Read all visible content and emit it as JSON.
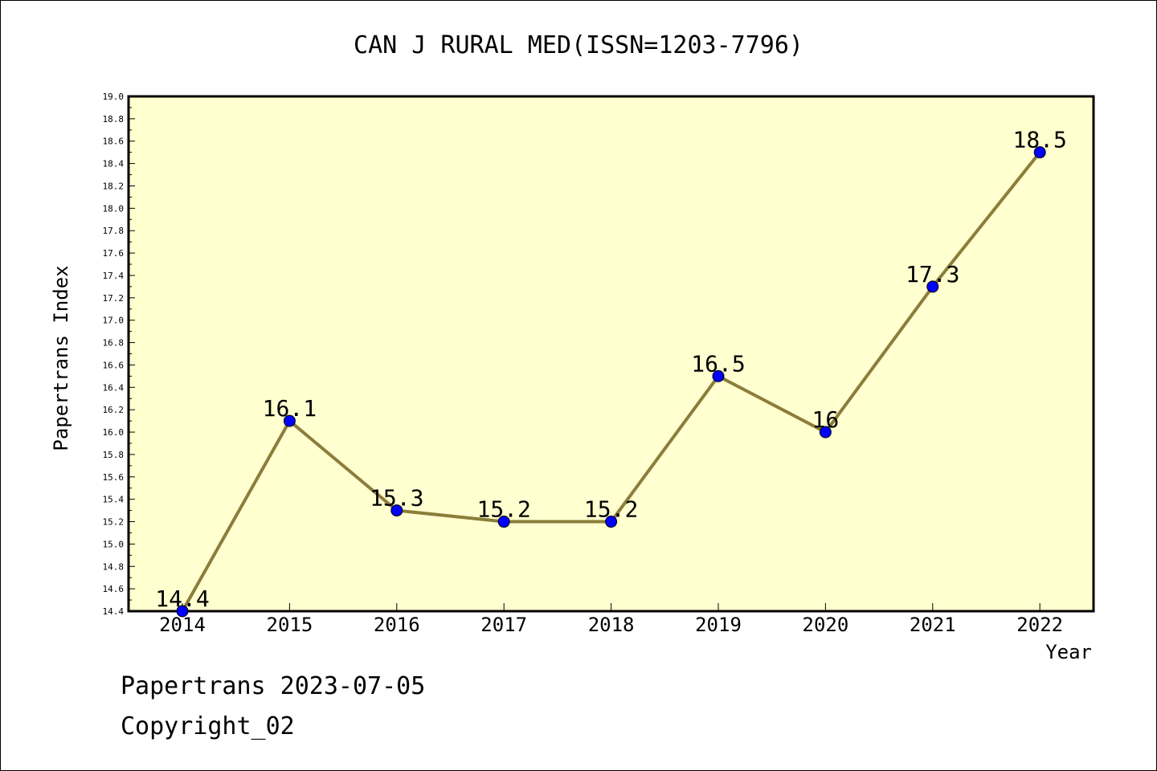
{
  "chart_data": {
    "type": "line",
    "title": "CAN J RURAL MED(ISSN=1203-7796)",
    "xlabel": "Year",
    "ylabel": "Papertrans Index",
    "categories": [
      "2014",
      "2015",
      "2016",
      "2017",
      "2018",
      "2019",
      "2020",
      "2021",
      "2022"
    ],
    "series": [
      {
        "values": [
          14.4,
          16.1,
          15.3,
          15.2,
          15.2,
          16.5,
          16.0,
          17.3,
          18.5
        ],
        "data_labels": [
          "14.4",
          "16.1",
          "15.3",
          "15.2",
          "15.2",
          "16.5",
          "16",
          "17.3",
          "18.5"
        ],
        "line_color": "#8b7d3a",
        "marker_color": "#0000ff"
      }
    ],
    "ylim": [
      14.4,
      19.0
    ],
    "yticks": [
      "14.4",
      "14.6",
      "14.8",
      "15.0",
      "15.2",
      "15.4",
      "15.6",
      "15.8",
      "16.0",
      "16.2",
      "16.4",
      "16.6",
      "16.8",
      "17.0",
      "17.2",
      "17.4",
      "17.6",
      "17.8",
      "18.0",
      "18.2",
      "18.4",
      "18.6",
      "18.8",
      "19.0"
    ],
    "plot_background": "#ffffd0",
    "grid": false,
    "legend": "none"
  },
  "footer": {
    "line1": "Papertrans 2023-07-05",
    "line2": "Copyright_02"
  }
}
